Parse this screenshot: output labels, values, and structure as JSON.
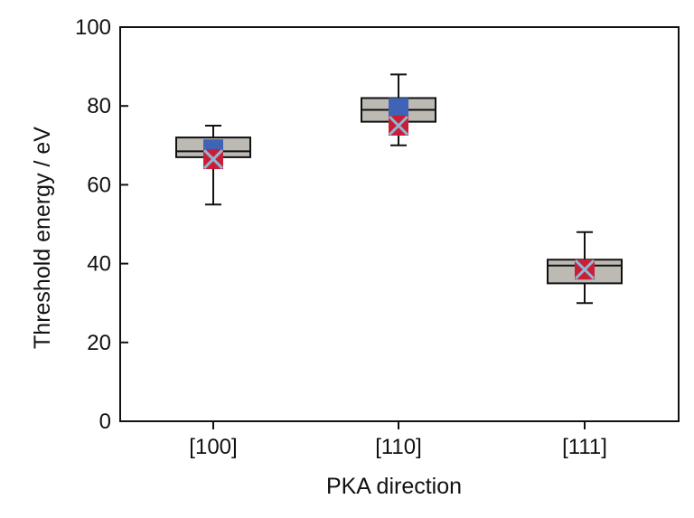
{
  "chart_data": {
    "type": "box",
    "xlabel": "PKA direction",
    "ylabel": "Threshold energy / eV",
    "ylim": [
      0,
      100
    ],
    "yticks": [
      0,
      20,
      40,
      60,
      80,
      100
    ],
    "grid": false,
    "categories": [
      "[100]",
      "[110]",
      "[111]"
    ],
    "boxes": [
      {
        "category": "[100]",
        "min": 55,
        "q1": 67,
        "median": 68.5,
        "q3": 72,
        "max": 75,
        "mean_marker_a": 69,
        "mean_marker_b": 66.5
      },
      {
        "category": "[110]",
        "min": 70,
        "q1": 76,
        "median": 79,
        "q3": 82,
        "max": 88,
        "mean_marker_a": 79.5,
        "mean_marker_b": 75
      },
      {
        "category": "[111]",
        "min": 30,
        "q1": 35,
        "median": 39.5,
        "q3": 41,
        "max": 48,
        "mean_marker_a": 38.5,
        "mean_marker_b": 38.5
      }
    ],
    "colors": {
      "box_fill": "#bdbab4",
      "line": "#111111",
      "marker_a": "#3f63b5",
      "marker_b": "#c81f37",
      "cross": "#8fb6d4"
    }
  }
}
